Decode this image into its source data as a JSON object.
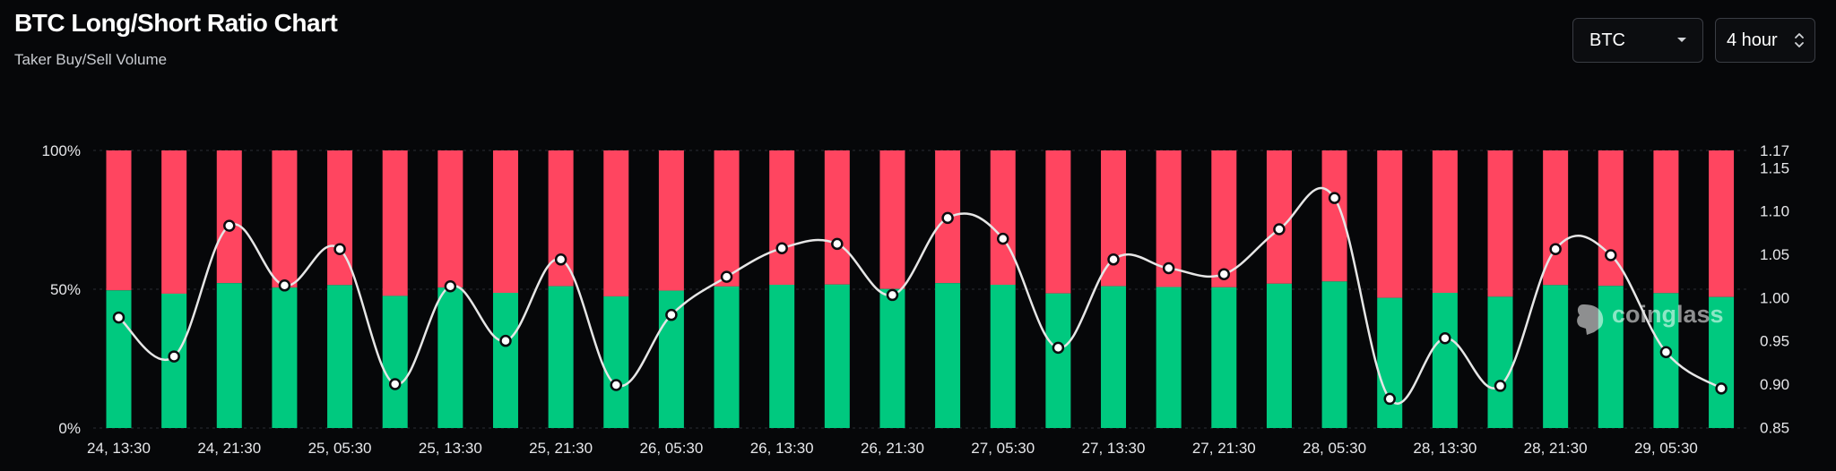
{
  "header": {
    "title": "BTC Long/Short Ratio Chart",
    "subtitle": "Taker Buy/Sell Volume"
  },
  "controls": {
    "coin_select": {
      "value": "BTC",
      "icon": "caret-down-icon"
    },
    "interval_select": {
      "value": "4 hour",
      "icon": "updown-chevron-icon"
    }
  },
  "watermark": {
    "text": "coinglass"
  },
  "colors": {
    "long": "#00c97f",
    "short": "#ff4560",
    "ratio_line": "#e6e6e6",
    "background": "#060709"
  },
  "chart_data": {
    "type": "bar",
    "stacked": true,
    "title": "BTC Long/Short Ratio Chart",
    "subtitle": "Taker Buy/Sell Volume",
    "x_tick_labels": [
      "24, 13:30",
      "24, 21:30",
      "25, 05:30",
      "25, 13:30",
      "25, 21:30",
      "26, 05:30",
      "26, 13:30",
      "26, 21:30",
      "27, 05:30",
      "27, 13:30",
      "27, 21:30",
      "28, 05:30",
      "28, 13:30",
      "28, 21:30",
      "29, 05:30"
    ],
    "left_axis": {
      "ticks": [
        "0%",
        "50%",
        "100%"
      ],
      "range": [
        0,
        100
      ]
    },
    "right_axis": {
      "ticks": [
        "0.85",
        "0.90",
        "0.95",
        "1.00",
        "1.05",
        "1.10",
        "1.15",
        "1.17"
      ],
      "range": [
        0.84,
        1.17
      ]
    },
    "series": [
      {
        "name": "long",
        "axis": "left",
        "values": [
          49.6,
          48.4,
          52.2,
          50.6,
          51.5,
          47.6,
          50.6,
          48.7,
          51.1,
          47.4,
          49.5,
          51.0,
          51.6,
          51.7,
          50.1,
          52.2,
          51.6,
          48.5,
          51.1,
          50.8,
          50.7,
          52.0,
          52.8,
          46.9,
          48.7,
          47.3,
          51.5,
          51.2,
          48.6,
          47.2
        ]
      },
      {
        "name": "short",
        "axis": "left",
        "values": [
          50.4,
          51.6,
          47.8,
          49.4,
          48.5,
          52.4,
          49.4,
          51.3,
          48.9,
          52.6,
          50.5,
          49.0,
          48.4,
          48.3,
          49.9,
          47.8,
          48.4,
          51.5,
          48.9,
          49.2,
          49.3,
          48.0,
          47.2,
          53.1,
          51.3,
          52.7,
          48.5,
          48.8,
          51.4,
          52.8
        ]
      },
      {
        "name": "ratio",
        "axis": "right",
        "type": "line",
        "values": [
          0.977,
          0.932,
          1.083,
          1.014,
          1.056,
          0.9,
          1.013,
          0.95,
          1.044,
          0.899,
          0.98,
          1.024,
          1.057,
          1.062,
          1.003,
          1.092,
          1.068,
          0.942,
          1.044,
          1.034,
          1.027,
          1.079,
          1.115,
          0.883,
          0.953,
          0.898,
          1.056,
          1.049,
          0.937,
          0.895
        ]
      }
    ]
  }
}
